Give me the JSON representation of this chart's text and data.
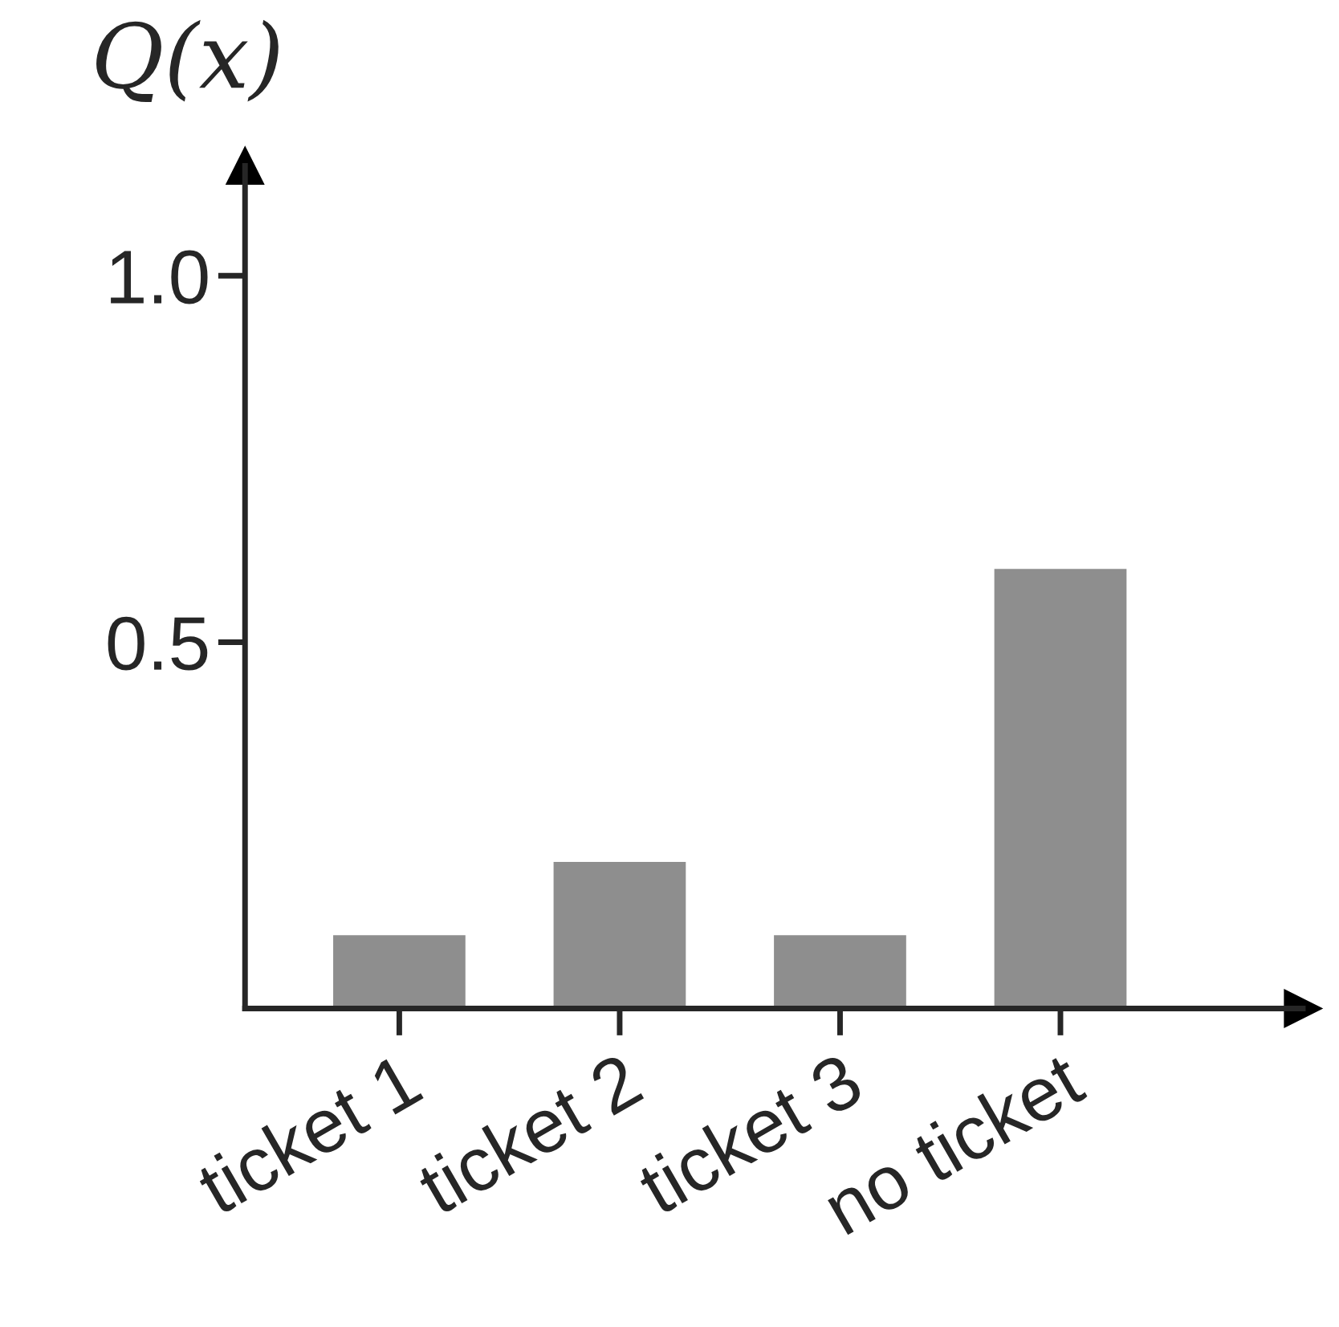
{
  "chart_data": {
    "type": "bar",
    "ylabel": "Q(x)",
    "categories": [
      "ticket 1",
      "ticket 2",
      "ticket 3",
      "no ticket"
    ],
    "values": [
      0.1,
      0.2,
      0.1,
      0.6
    ],
    "color": "#8e8e8e",
    "ylim": [
      0,
      1.15
    ],
    "yticks": [
      0.5,
      {
        "value": 1.0,
        "label": "1.0"
      }
    ],
    "grid": false,
    "legend": false
  }
}
